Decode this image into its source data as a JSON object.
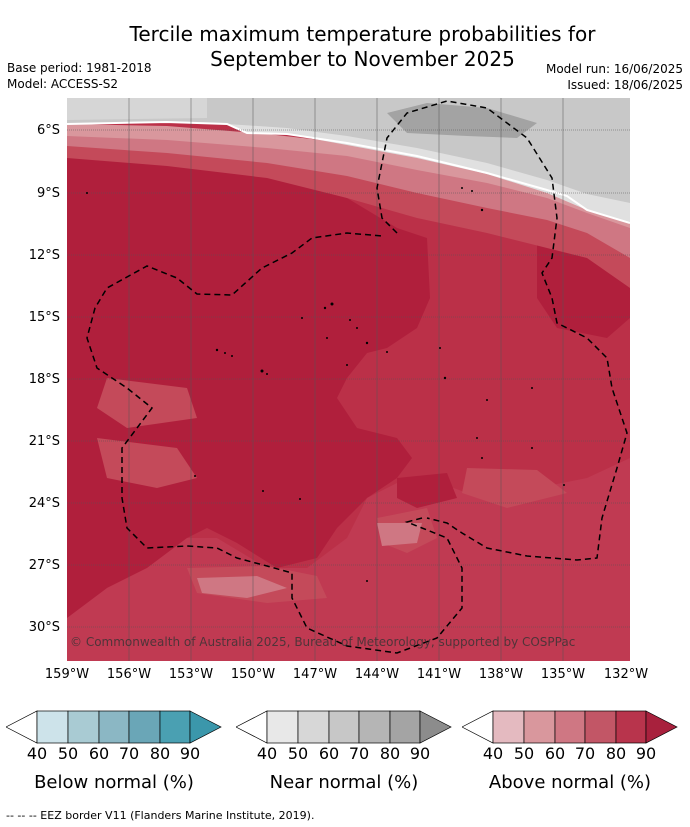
{
  "title": {
    "line1": "Tercile maximum temperature probabilities for",
    "line2": "September to November 2025"
  },
  "meta": {
    "base_period": "Base period: 1981-2018",
    "model": "Model: ACCESS-S2",
    "model_run": "Model run: 16/06/2025",
    "issued": "Issued: 18/06/2025"
  },
  "map": {
    "lat_labels": [
      "6°S",
      "9°S",
      "12°S",
      "15°S",
      "18°S",
      "21°S",
      "24°S",
      "27°S",
      "30°S"
    ],
    "lon_labels": [
      "159°W",
      "156°W",
      "153°W",
      "150°W",
      "147°W",
      "144°W",
      "141°W",
      "138°W",
      "135°W",
      "132°W"
    ],
    "copyright": "© Commonwealth of Australia 2025, Bureau of Meteorology, supported by COSPPac",
    "dominant_category": "Above normal",
    "colors": {
      "above_90": "#b01f3c",
      "above_80": "#bb3048",
      "above_70": "#c44a5a",
      "above_60": "#cf7783",
      "above_50": "#d9979d",
      "above_40": "#e4bac0",
      "near_40": "#e8e8e8",
      "near_50": "#d9d9d9",
      "near_60": "#c8c8c8",
      "near_70": "#b6b6b6",
      "near_80": "#a3a3a3"
    }
  },
  "legends": {
    "ticks": [
      "40",
      "50",
      "60",
      "70",
      "80",
      "90"
    ],
    "below": {
      "label": "Below normal (%)",
      "colors": [
        "#ffffff",
        "#cde3ea",
        "#a9cbd3",
        "#8bb7c4",
        "#6aa6b7",
        "#4aa0b2",
        "#3b97ab"
      ]
    },
    "near": {
      "label": "Near normal (%)",
      "colors": [
        "#ffffff",
        "#e8e8e8",
        "#d7d7d7",
        "#c7c7c7",
        "#b5b5b5",
        "#a4a4a4",
        "#8c8c8c"
      ]
    },
    "above": {
      "label": "Above normal (%)",
      "colors": [
        "#ffffff",
        "#e4bac0",
        "#d9979d",
        "#cf7783",
        "#c25666",
        "#b8344c",
        "#a8213d"
      ]
    }
  },
  "footer": "--  --  -- EEZ border V11 (Flanders Marine Institute, 2019)."
}
